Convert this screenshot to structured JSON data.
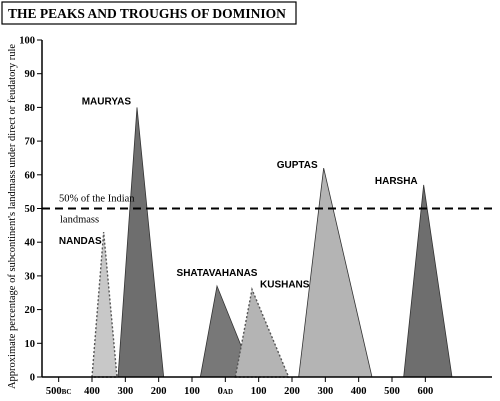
{
  "chart_data": {
    "type": "area",
    "title": "THE PEAKS AND TROUGHS OF DOMINION",
    "ylabel": "Approximate percentage of subcontinent's landmass under direct or feudatory rule",
    "xlabel": "",
    "xlim": [
      -550,
      800
    ],
    "ylim": [
      0,
      100
    ],
    "x_ticks": [
      {
        "value": -500,
        "label": "500",
        "era": "BC"
      },
      {
        "value": -400,
        "label": "400",
        "era": ""
      },
      {
        "value": -300,
        "label": "300",
        "era": ""
      },
      {
        "value": -200,
        "label": "200",
        "era": ""
      },
      {
        "value": -100,
        "label": "100",
        "era": ""
      },
      {
        "value": 0,
        "label": "0",
        "era": "AD"
      },
      {
        "value": 100,
        "label": "100",
        "era": ""
      },
      {
        "value": 200,
        "label": "200",
        "era": ""
      },
      {
        "value": 300,
        "label": "300",
        "era": ""
      },
      {
        "value": 400,
        "label": "400",
        "era": ""
      },
      {
        "value": 500,
        "label": "500",
        "era": ""
      },
      {
        "value": 600,
        "label": "600",
        "era": ""
      }
    ],
    "y_ticks": [
      0,
      10,
      20,
      30,
      40,
      50,
      60,
      70,
      80,
      90,
      100
    ],
    "reference_line": {
      "y": 50,
      "label_line1": "50% of the Indian",
      "label_line2": "landmass"
    },
    "series": [
      {
        "name": "NANDAS",
        "start": -400,
        "peak_x": -365,
        "peak_y": 43,
        "end": -325,
        "color": "#c8c8c8",
        "dotted": true
      },
      {
        "name": "MAURYAS",
        "start": -322,
        "peak_x": -265,
        "peak_y": 80,
        "end": -185,
        "color": "#6e6e6e",
        "dotted": false
      },
      {
        "name": "SHATAVAHANAS",
        "start": -75,
        "peak_x": -25,
        "peak_y": 27,
        "end": 85,
        "color": "#787878",
        "dotted": false
      },
      {
        "name": "KUSHANS",
        "start": 30,
        "peak_x": 80,
        "peak_y": 26,
        "end": 190,
        "color": "#b4b4b4",
        "dotted": true
      },
      {
        "name": "GUPTAS",
        "start": 220,
        "peak_x": 295,
        "peak_y": 62,
        "end": 440,
        "color": "#b4b4b4",
        "dotted": false
      },
      {
        "name": "HARSHA",
        "start": 535,
        "peak_x": 595,
        "peak_y": 57,
        "end": 680,
        "color": "#6e6e6e",
        "dotted": false
      }
    ]
  }
}
